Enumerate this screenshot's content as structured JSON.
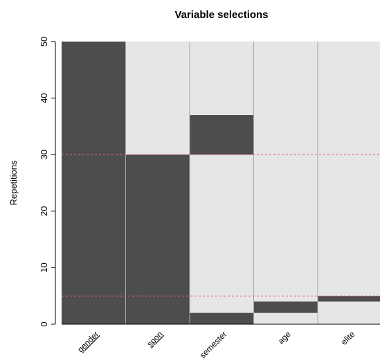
{
  "chart_data": {
    "type": "bar",
    "title": "Variable selections",
    "xlabel": "",
    "ylabel": "Repetitions",
    "ylim": [
      0,
      50
    ],
    "yticks": [
      0,
      10,
      20,
      30,
      40,
      50
    ],
    "categories": [
      "gender",
      "spon",
      "semester",
      "age",
      "elite"
    ],
    "underlined_categories": [
      "gender",
      "spon"
    ],
    "segments": [
      [
        [
          0,
          50
        ]
      ],
      [
        [
          0,
          30
        ]
      ],
      [
        [
          0,
          2
        ],
        [
          30,
          37
        ]
      ],
      [
        [
          2,
          4
        ]
      ],
      [
        [
          4,
          5
        ]
      ]
    ],
    "reference_lines": [
      30,
      5
    ],
    "grid": false,
    "colors": {
      "selected": "#4d4d4d",
      "background": "#e6e6e6",
      "separator": "#a6a6a6",
      "reference_line": "#e0607a"
    }
  }
}
